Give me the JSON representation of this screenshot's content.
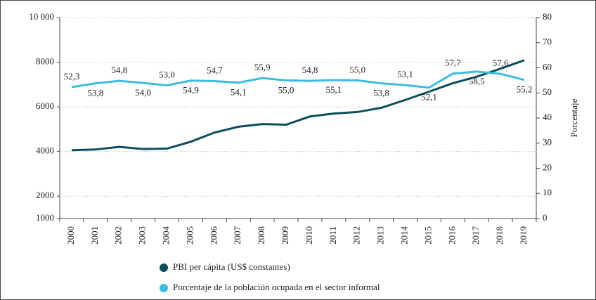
{
  "chart_data": {
    "type": "line",
    "categories": [
      "2000",
      "2001",
      "2002",
      "2003",
      "2004",
      "2005",
      "2006",
      "2007",
      "2008",
      "2009",
      "2010",
      "2011",
      "2012",
      "2013",
      "2014",
      "2015",
      "2016",
      "2017",
      "2018",
      "2019"
    ],
    "series": [
      {
        "name": "PBI per cápita (US$ constantes)",
        "color": "#0d4d5c",
        "values": [
          4060,
          4090,
          4210,
          4110,
          4130,
          4440,
          4850,
          5110,
          5230,
          5200,
          5570,
          5700,
          5770,
          5960,
          6310,
          6680,
          7060,
          7350,
          7710,
          8090
        ]
      },
      {
        "name": "Porcentaje de la población ocupada en el sector informal",
        "color": "#3cbde0",
        "axis": "y2",
        "values": [
          52.3,
          53.8,
          54.8,
          54.0,
          53.0,
          54.9,
          54.7,
          54.1,
          55.9,
          55.0,
          54.8,
          55.1,
          55.0,
          53.8,
          53.1,
          52.1,
          57.7,
          58.5,
          57.6,
          55.2
        ],
        "value_labels": [
          "52,3",
          "53,8",
          "54,8",
          "54,0",
          "53,0",
          "54,9",
          "54,7",
          "54,1",
          "55,9",
          "55,0",
          "54,8",
          "55,1",
          "55,0",
          "53,8",
          "53,1",
          "52,1",
          "57,7",
          "58,5",
          "57,6",
          "55,2"
        ]
      }
    ],
    "ylim": [
      1000,
      10000
    ],
    "yticks": [
      1000,
      2000,
      4000,
      6000,
      8000,
      {
        "value": 10000,
        "label": "10 000"
      }
    ],
    "y2lim": [
      0,
      80
    ],
    "y2ticks": [
      0,
      10,
      20,
      30,
      40,
      50,
      60,
      70,
      80
    ],
    "y2label": "Porcentaje",
    "grid": true,
    "legend": "bottom"
  }
}
